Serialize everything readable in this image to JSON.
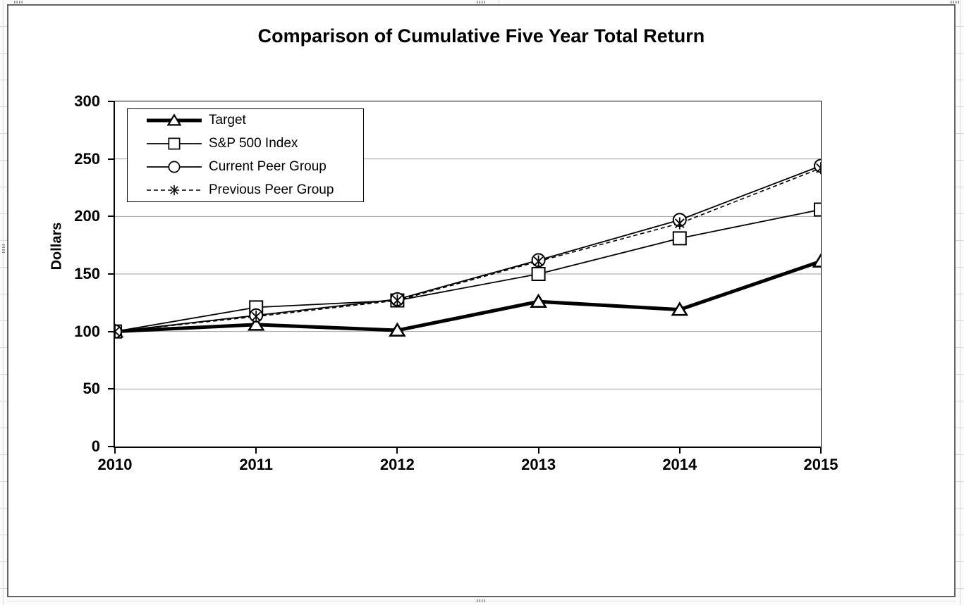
{
  "chart": {
    "title": "Comparison of Cumulative Five Year Total Return",
    "ylabel": "Dollars"
  },
  "colors": {
    "series": "#000000",
    "gridline": "#9e9e9e",
    "chart_border": "#636363",
    "sheet_gridline": "#d9d9d9"
  },
  "chart_data": {
    "type": "line",
    "title": "Comparison of Cumulative Five Year Total Return",
    "xlabel": "",
    "ylabel": "Dollars",
    "categories": [
      "2010",
      "2011",
      "2012",
      "2013",
      "2014",
      "2015"
    ],
    "series": [
      {
        "name": "Target",
        "marker": "triangle",
        "line": "thick-solid",
        "values": [
          100,
          106,
          101,
          126,
          119,
          161
        ]
      },
      {
        "name": "S&P 500 Index",
        "marker": "square",
        "line": "thin-solid",
        "values": [
          100,
          121,
          127,
          150,
          181,
          206
        ]
      },
      {
        "name": "Current Peer Group",
        "marker": "circle",
        "line": "thin-solid",
        "values": [
          100,
          114,
          128,
          162,
          197,
          244
        ]
      },
      {
        "name": "Previous Peer Group",
        "marker": "asterisk",
        "line": "thin-dashed",
        "values": [
          100,
          113,
          127,
          161,
          194,
          242
        ]
      }
    ],
    "ylim": [
      0,
      300
    ],
    "ytick_step": 50,
    "ytick_labels": [
      "0",
      "50",
      "100",
      "150",
      "200",
      "250",
      "300"
    ],
    "grid": "horizontal",
    "legend_position": "top-left-inside"
  }
}
